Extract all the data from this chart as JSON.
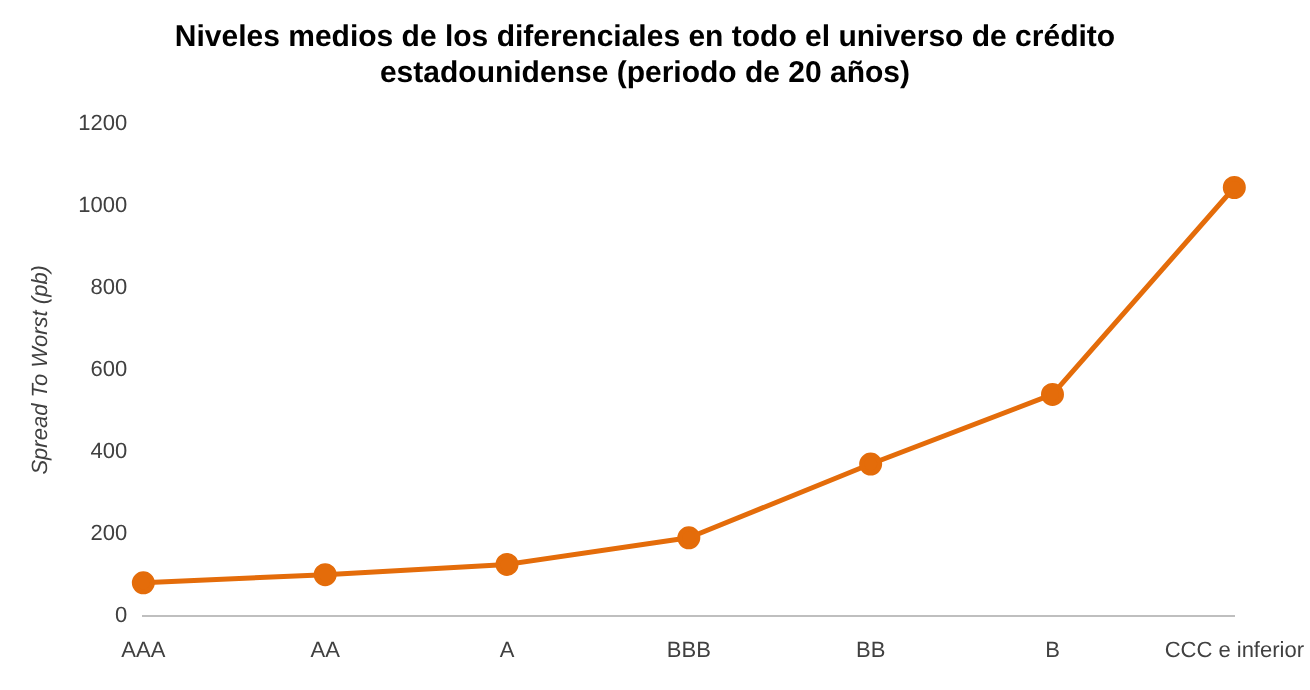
{
  "chart_data": {
    "type": "line",
    "title": [
      "Niveles medios de los diferenciales en todo el universo de crédito",
      "estadounidense (periodo de 20 años)"
    ],
    "ylabel": "Spread To Worst (pb)",
    "categories": [
      "AAA",
      "AA",
      "A",
      "BBB",
      "BB",
      "B",
      "CCC e inferior"
    ],
    "series": [
      {
        "color": "#e46c0a",
        "values": [
          80,
          100,
          125,
          190,
          370,
          540,
          1045
        ]
      }
    ],
    "ylim": [
      0,
      1200
    ],
    "yticks": [
      0,
      200,
      400,
      600,
      800,
      1000,
      1200
    ],
    "grid": false,
    "legend": false,
    "marker": "circle",
    "line_style": "solid"
  }
}
